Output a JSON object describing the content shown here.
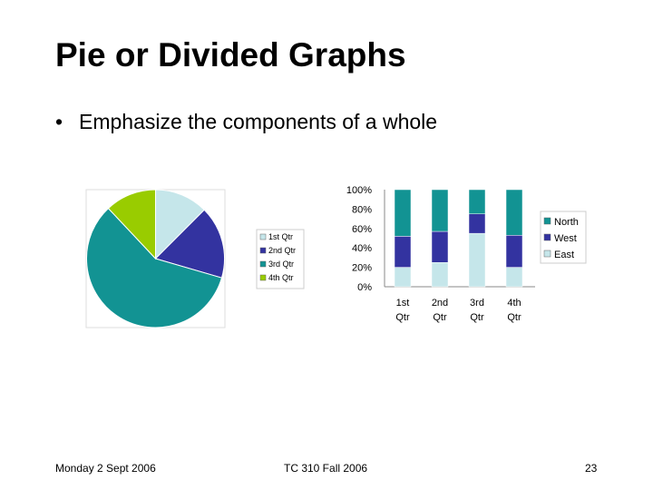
{
  "slide": {
    "title": "Pie or Divided Graphs",
    "bullet": "Emphasize the components of a whole"
  },
  "footer": {
    "date": "Monday 2 Sept 2006",
    "course": "TC 310 Fall 2006",
    "page": "23"
  },
  "chart_data": [
    {
      "type": "pie",
      "categories": [
        "1st Qtr",
        "2nd Qtr",
        "3rd Qtr",
        "4th Qtr"
      ],
      "values": [
        12.5,
        17,
        58.5,
        12
      ],
      "colors": [
        "#c5e6ea",
        "#3333a0",
        "#129393",
        "#99cc00"
      ],
      "legend_position": "right"
    },
    {
      "type": "bar",
      "stacked": "percent",
      "categories": [
        "1st Qtr",
        "2nd Qtr",
        "3rd Qtr",
        "4th Qtr"
      ],
      "series": [
        {
          "name": "East",
          "values": [
            20,
            25,
            55,
            20
          ],
          "color": "#c5e6ea"
        },
        {
          "name": "West",
          "values": [
            32,
            32,
            20,
            33
          ],
          "color": "#3333a0"
        },
        {
          "name": "North",
          "values": [
            48,
            43,
            25,
            47
          ],
          "color": "#129393"
        }
      ],
      "yticks": [
        "0%",
        "20%",
        "40%",
        "60%",
        "80%",
        "100%"
      ],
      "ylim": [
        0,
        100
      ],
      "grid": false,
      "legend_position": "right"
    }
  ]
}
